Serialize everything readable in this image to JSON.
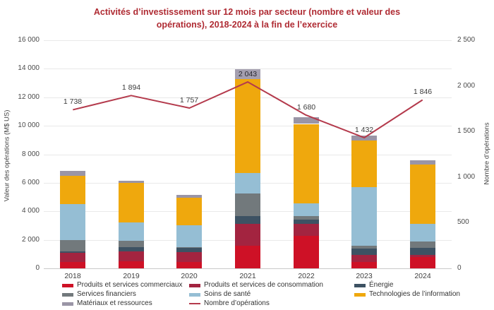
{
  "header": {
    "title_line1": "Activités d’investissement sur 12 mois par secteur (nombre et valeur des",
    "title_line2": "opérations), 2018-2024 à la fin de l’exercice"
  },
  "chart_data": {
    "type": "combo: stacked-bar + line",
    "title": "Activités d’investissement sur 12 mois par secteur (nombre et valeur des opérations), 2018-2024 à la fin de l’exercice",
    "categories": [
      "2018",
      "2019",
      "2020",
      "2021",
      "2022",
      "2023",
      "2024"
    ],
    "bar_series": [
      {
        "name": "Produits et services commerciaux",
        "color": "#ce1126",
        "values": [
          450,
          500,
          450,
          1600,
          2300,
          450,
          800
        ]
      },
      {
        "name": "Produits et services de consommation",
        "color": "#a32440",
        "values": [
          650,
          700,
          700,
          1500,
          800,
          500,
          150
        ]
      },
      {
        "name": "Énergie",
        "color": "#3d5263",
        "values": [
          100,
          300,
          300,
          550,
          330,
          450,
          500
        ]
      },
      {
        "name": "Services financiers",
        "color": "#72797c",
        "values": [
          800,
          450,
          50,
          1600,
          250,
          200,
          450
        ]
      },
      {
        "name": "Soins de santé",
        "color": "#95bed4",
        "values": [
          2500,
          1250,
          1500,
          1450,
          900,
          4100,
          1200
        ]
      },
      {
        "name": "Technologies de l’information",
        "color": "#efa80d",
        "values": [
          2000,
          2800,
          1950,
          6600,
          5550,
          3250,
          4200
        ]
      },
      {
        "name": "Matériaux et ressources",
        "color": "#9a95a6",
        "values": [
          350,
          150,
          200,
          600,
          470,
          350,
          300
        ]
      }
    ],
    "bar_totals": [
      6850,
      6150,
      5150,
      13900,
      10600,
      9300,
      7600
    ],
    "line_series": {
      "name": "Nombre d’opérations",
      "color": "#b43a4c",
      "values": [
        1738,
        1894,
        1757,
        2043,
        1680,
        1432,
        1846
      ],
      "labels": [
        "1 738",
        "1 894",
        "1 757",
        "2 043",
        "1 680",
        "1 432",
        "1 846"
      ],
      "highlighted_label_index": 3,
      "highlight_bg": "#a49fb0"
    },
    "left_axis": {
      "label": "Valeur des opérations (M$ US)",
      "min": 0,
      "max": 16000,
      "step": 2000,
      "tick_labels": [
        "0",
        "2 000",
        "4 000",
        "6 000",
        "8 000",
        "10 000",
        "12 000",
        "14 000",
        "16 000"
      ]
    },
    "right_axis": {
      "label": "Nombre d’opérations",
      "min": 0,
      "max": 2500,
      "step": 500,
      "tick_labels": [
        "0",
        "500",
        "1 000",
        "1 500",
        "2 000",
        "2 500"
      ]
    },
    "grid": true,
    "legend_position": "bottom"
  },
  "legend": {
    "columns": [
      {
        "items": [
          {
            "label": "Produits et services commerciaux",
            "swatch": "box",
            "color": "#ce1126"
          },
          {
            "label": "Services financiers",
            "swatch": "box",
            "color": "#72797c"
          },
          {
            "label": "Matériaux et ressources",
            "swatch": "box",
            "color": "#9a95a6"
          }
        ]
      },
      {
        "items": [
          {
            "label": "Produits et services de consommation",
            "swatch": "box",
            "color": "#a32440"
          },
          {
            "label": "Soins de santé",
            "swatch": "box",
            "color": "#95bed4"
          },
          {
            "label": "Nombre d’opérations",
            "swatch": "line",
            "color": "#b43a4c"
          }
        ]
      },
      {
        "items": [
          {
            "label": "Énergie",
            "swatch": "box",
            "color": "#3d5263"
          },
          {
            "label": "Technologies de l’information",
            "swatch": "box",
            "color": "#efa80d"
          }
        ]
      }
    ]
  }
}
